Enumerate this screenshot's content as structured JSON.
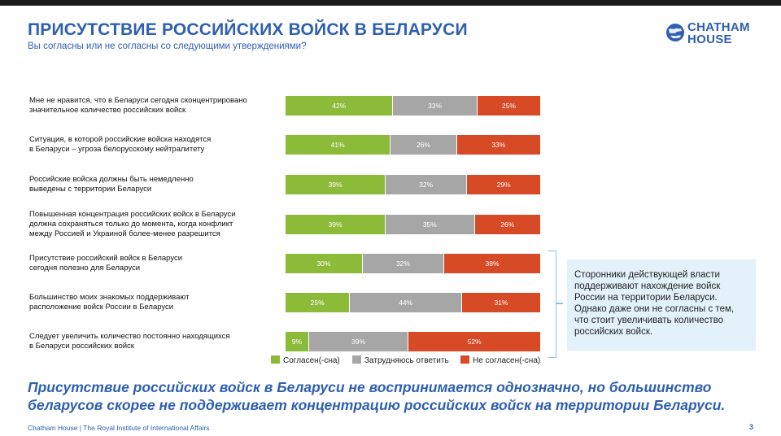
{
  "header": {
    "title": "ПРИСУТСТВИЕ РОССИЙСКИХ ВОЙСК В БЕЛАРУСИ",
    "subtitle": "Вы согласны или не согласны со следующими утверждениями?"
  },
  "logo": {
    "line1": "CHATHAM",
    "line2": "HOUSE",
    "icon": "globe-icon"
  },
  "colors": {
    "agree": "#8cbb3a",
    "unsure": "#a6a6a6",
    "disagree": "#d64a26",
    "accent": "#2e5fb0",
    "note_bg": "#e3f1fb"
  },
  "chart_data": {
    "type": "bar",
    "orientation": "horizontal",
    "stacked": true,
    "unit": "%",
    "title": "ПРИСУТСТВИЕ РОССИЙСКИХ ВОЙСК В БЕЛАРУСИ",
    "legend_position": "bottom",
    "xlim": [
      0,
      100
    ],
    "categories": [
      "Мне не нравится, что в Беларуси сегодня сконцентрировано значительное количество российских войск",
      "Ситуация, в которой российские войска находятся в Беларуси – угроза белорусскому нейтралитету",
      "Российские войска должны быть немедленно выведены с территории Беларуси",
      "Повышенная концентрация российских войск в Беларуси должна сохраняться только до момента, когда конфликт между Россией и Украиной более-менее разрешится",
      "Присутствие российский войск в Беларуси сегодня полезно для Беларуси",
      "Большинство моих знакомых поддерживают расположение войск России в Беларуси",
      "Следует увеличить количество постоянно находящихся в Беларуси российских войск"
    ],
    "label_lines": [
      [
        "Мне не нравится, что в Беларуси сегодня сконцентрировано",
        "значительное количество российских войск"
      ],
      [
        "Ситуация, в которой российские войска находятся",
        "в Беларуси – угроза белорусскому нейтралитету"
      ],
      [
        "Российские войска должны быть немедленно",
        "выведены с территории Беларуси"
      ],
      [
        "Повышенная концентрация российских войск в Беларуси",
        "должна сохраняться только до момента, когда конфликт",
        "между Россией и Украиной более-менее разрешится"
      ],
      [
        "Присутствие российский войск в Беларуси",
        "сегодня полезно для Беларуси"
      ],
      [
        "Большинство моих знакомых поддерживают",
        "расположение войск России в Беларуси"
      ],
      [
        "Следует увеличить количество постоянно находящихся",
        "в Беларуси российских войск"
      ]
    ],
    "series": [
      {
        "name": "Согласен(-сна)",
        "values": [
          42,
          41,
          39,
          39,
          30,
          25,
          9
        ]
      },
      {
        "name": "Затрудняюсь ответить",
        "values": [
          33,
          26,
          32,
          35,
          32,
          44,
          39
        ]
      },
      {
        "name": "Не согласен(-сна)",
        "values": [
          25,
          33,
          29,
          26,
          38,
          31,
          52
        ]
      }
    ]
  },
  "note": {
    "text": "Сторонники действующей власти поддерживают нахождение войск России на территории Беларуси. Однако даже они не согласны с тем, что стоит увеличивать количество российских войск."
  },
  "conclusion": {
    "text": "Присутствие российских войск в Беларуси не воспринимается однозначно, но большинство беларусов скорее не поддерживает концентрацию российских войск на территории Беларуси."
  },
  "footer": {
    "text": "Chatham House  |  The Royal Institute of International Affairs",
    "page": "3"
  }
}
